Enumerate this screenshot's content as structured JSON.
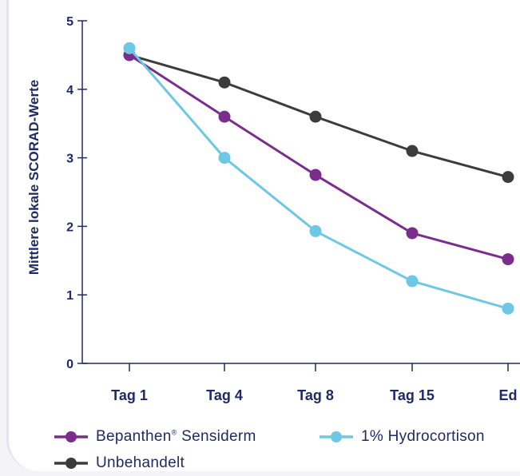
{
  "chart_data": {
    "type": "line",
    "ylabel": "Mittlere lokale SCORAD-Werte",
    "xlabel": "",
    "categories": [
      "Tag 1",
      "Tag 4",
      "Tag 8",
      "Tag 15",
      "Ed"
    ],
    "ylim": [
      0,
      5
    ],
    "yticks": [
      "0",
      "1",
      "2",
      "3",
      "4",
      "5"
    ],
    "series": [
      {
        "key": "bepanthen",
        "name": "Bepanthen",
        "name_suffix": "Sensiderm",
        "color": "#7b2d8e",
        "values": [
          4.5,
          3.6,
          2.75,
          1.9,
          1.52
        ]
      },
      {
        "key": "hydrocortison",
        "name": "1% Hydrocortison",
        "color": "#6dc8e6",
        "values": [
          4.6,
          3.0,
          1.93,
          1.2,
          0.8
        ]
      },
      {
        "key": "unbehandelt",
        "name": "Unbehandelt",
        "color": "#3c3c3c",
        "values": [
          4.5,
          4.1,
          3.6,
          3.1,
          2.72
        ]
      }
    ],
    "legend": {
      "position": "bottom",
      "registered_mark": "®"
    }
  }
}
